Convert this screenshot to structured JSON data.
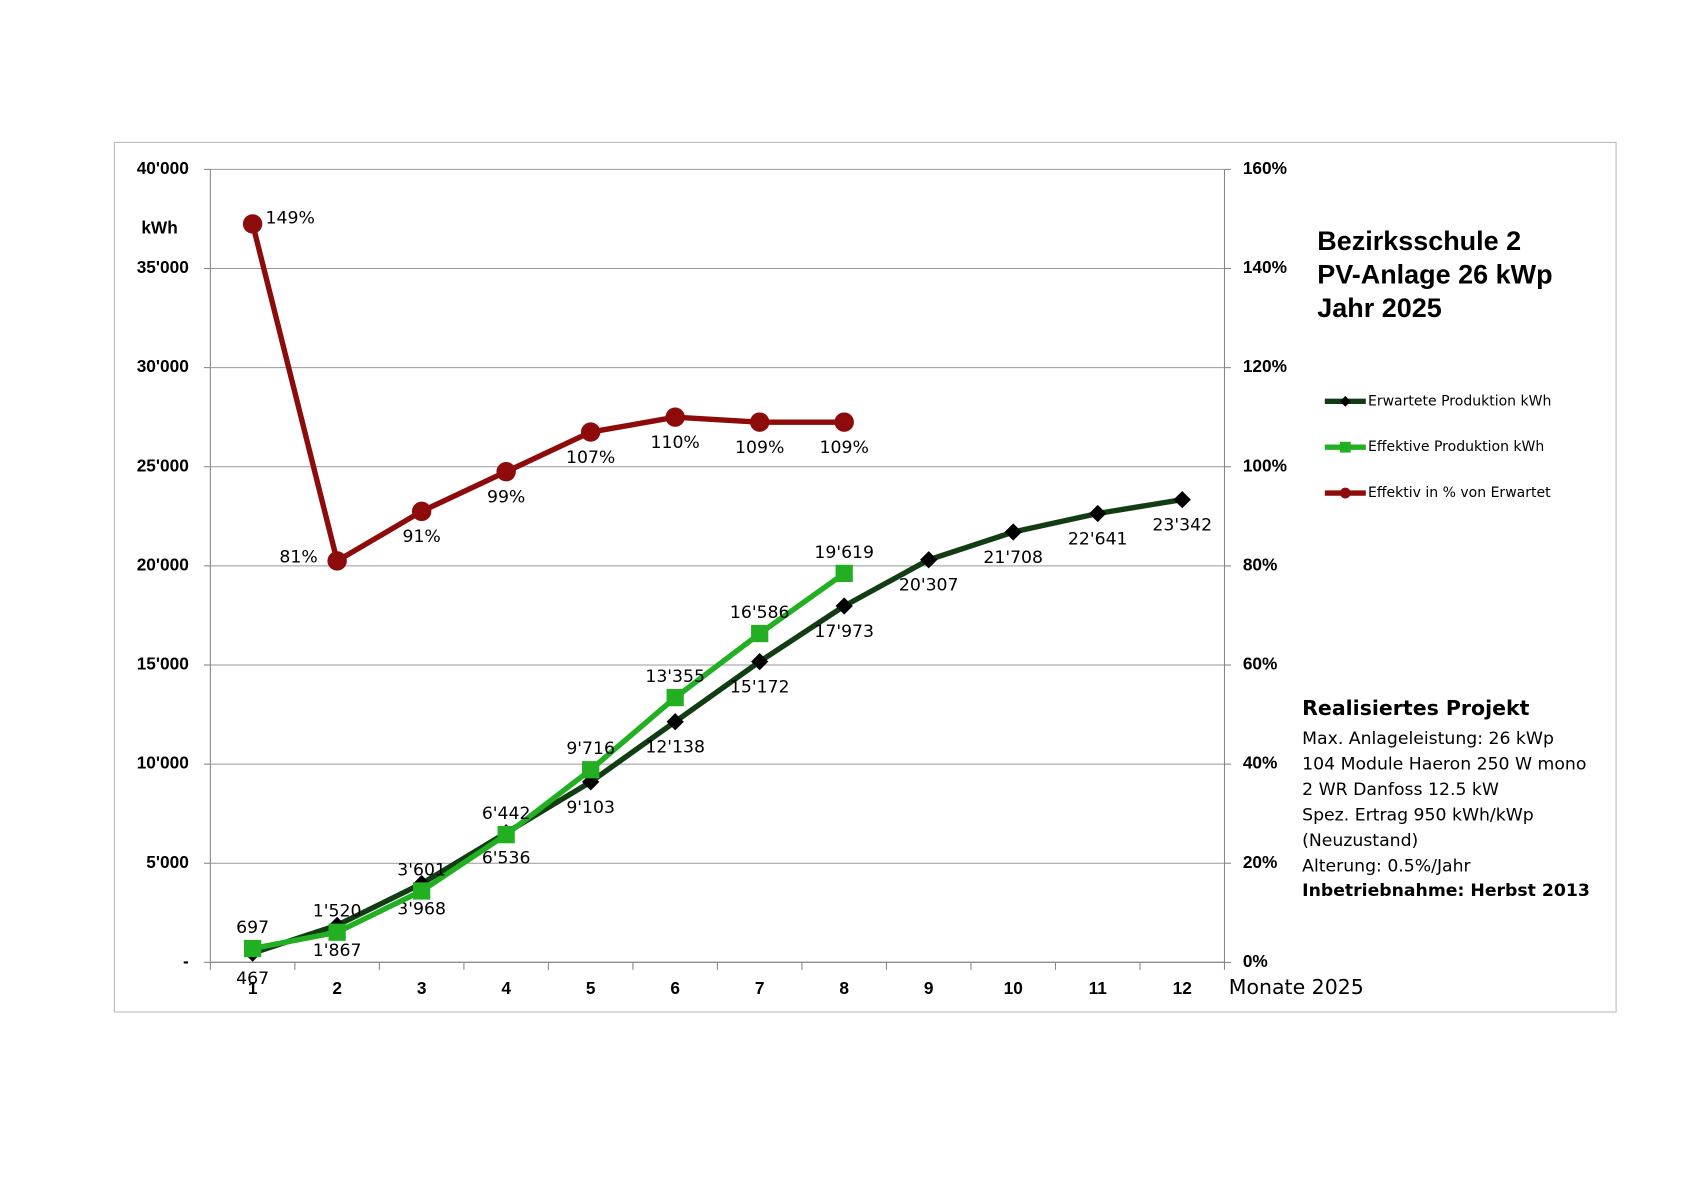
{
  "chart_data": {
    "type": "line",
    "title": [
      "Bezirksschule 2",
      "PV-Anlage 26 kWp",
      "Jahr 2025"
    ],
    "y_label": "kWh",
    "x_label": "Monate 2025",
    "categories": [
      "1",
      "2",
      "3",
      "4",
      "5",
      "6",
      "7",
      "8",
      "9",
      "10",
      "11",
      "12"
    ],
    "series": [
      {
        "name": "Erwartete Produktion kWh",
        "color": "#123d14",
        "marker": "diamond",
        "values": [
          467,
          1867,
          3968,
          6536,
          9103,
          12138,
          15172,
          17973,
          20307,
          21708,
          22641,
          23342
        ],
        "value_labels": [
          "467",
          "1'867",
          "3'968",
          "6'536",
          "9'103",
          "12'138",
          "15'172",
          "17'973",
          "20'307",
          "21'708",
          "22'641",
          "23'342"
        ]
      },
      {
        "name": "Effektive Produktion kWh",
        "color": "#22b022",
        "marker": "square",
        "values": [
          697,
          1520,
          3601,
          6442,
          9716,
          13355,
          16586,
          19619,
          null,
          null,
          null,
          null
        ],
        "value_labels": [
          "697",
          "1'520",
          "3'601",
          "6'442",
          "9'716",
          "13'355",
          "16'586",
          "19'619",
          null,
          null,
          null,
          null
        ]
      },
      {
        "name": "Effektiv in % von Erwartet",
        "color": "#8e0b0b",
        "marker": "circle",
        "axis": "y2",
        "values": [
          149,
          81,
          91,
          99,
          107,
          110,
          109,
          109,
          null,
          null,
          null,
          null
        ],
        "value_labels": [
          "149%",
          "81%",
          "91%",
          "99%",
          "107%",
          "110%",
          "109%",
          "109%",
          null,
          null,
          null,
          null
        ]
      }
    ],
    "ylim": [
      0,
      40000
    ],
    "yticks": [
      {
        "value": 0,
        "label": "-"
      },
      {
        "value": 5000,
        "label": "5'000"
      },
      {
        "value": 10000,
        "label": "10'000"
      },
      {
        "value": 15000,
        "label": "15'000"
      },
      {
        "value": 20000,
        "label": "20'000"
      },
      {
        "value": 25000,
        "label": "25'000"
      },
      {
        "value": 30000,
        "label": "30'000"
      },
      {
        "value": 35000,
        "label": "35'000"
      },
      {
        "value": 40000,
        "label": "40'000"
      }
    ],
    "y2lim": [
      0,
      160
    ],
    "y2ticks": [
      {
        "value": 0,
        "label": "0%"
      },
      {
        "value": 20,
        "label": "20%"
      },
      {
        "value": 40,
        "label": "40%"
      },
      {
        "value": 60,
        "label": "60%"
      },
      {
        "value": 80,
        "label": "80%"
      },
      {
        "value": 100,
        "label": "100%"
      },
      {
        "value": 120,
        "label": "120%"
      },
      {
        "value": 140,
        "label": "140%"
      },
      {
        "value": 160,
        "label": "160%"
      }
    ],
    "grid": true,
    "legend": "right",
    "info": {
      "heading": "Realisiertes Projekt",
      "lines": [
        "Max. Anlageleistung: 26 kWp",
        "104 Module Haeron 250 W mono",
        "2 WR Danfoss 12.5 kW",
        "Spez. Ertrag 950 kWh/kWp",
        "(Neuzustand)",
        "Alterung: 0.5%/Jahr"
      ],
      "footer": "Inbetriebnahme: Herbst 2013"
    }
  }
}
